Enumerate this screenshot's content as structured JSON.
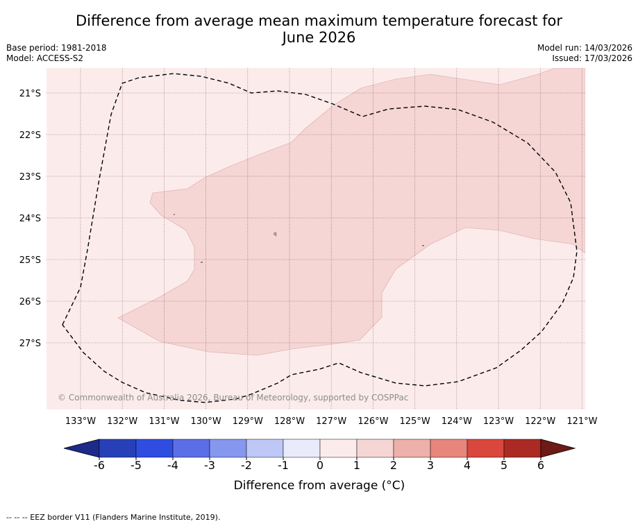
{
  "header": {
    "title_line1": "Difference from average mean maximum temperature forecast for",
    "title_line2": "June 2026",
    "base_period": "Base period: 1981-2018",
    "model": "Model: ACCESS-S2",
    "model_run": "Model run: 14/03/2026",
    "issued": "Issued: 17/03/2026"
  },
  "map": {
    "lat_labels": [
      "21°S",
      "22°S",
      "23°S",
      "24°S",
      "25°S",
      "26°S",
      "27°S"
    ],
    "lon_labels": [
      "133°W",
      "132°W",
      "131°W",
      "130°W",
      "129°W",
      "128°W",
      "127°W",
      "126°W",
      "125°W",
      "124°W",
      "123°W",
      "122°W",
      "121°W"
    ],
    "copyright": "© Commonwealth of Australia 2026, Bureau of Meteorology, supported by COSPPac",
    "colors": {
      "background_0_1": "#fbeceb",
      "anomaly_1_2": "#f5d6d4",
      "grid": "#6b3a4a",
      "eez": "#000000"
    }
  },
  "colorbar": {
    "ticks": [
      "-6",
      "-5",
      "-4",
      "-3",
      "-2",
      "-1",
      "0",
      "1",
      "2",
      "3",
      "4",
      "5",
      "6"
    ],
    "label": "Difference from average (°C)",
    "colors": [
      "#1c2a8a",
      "#2740b8",
      "#2f4de0",
      "#5a6fe6",
      "#8597ee",
      "#bfc7f7",
      "#e9ebfb",
      "#fbeceb",
      "#f5d6d4",
      "#eeb0aa",
      "#e8857d",
      "#d9473d",
      "#ab2a23",
      "#6e1a16"
    ]
  },
  "footer": {
    "eez_note": "--  --  -- EEZ border V11 (Flanders Marine Institute, 2019)."
  }
}
